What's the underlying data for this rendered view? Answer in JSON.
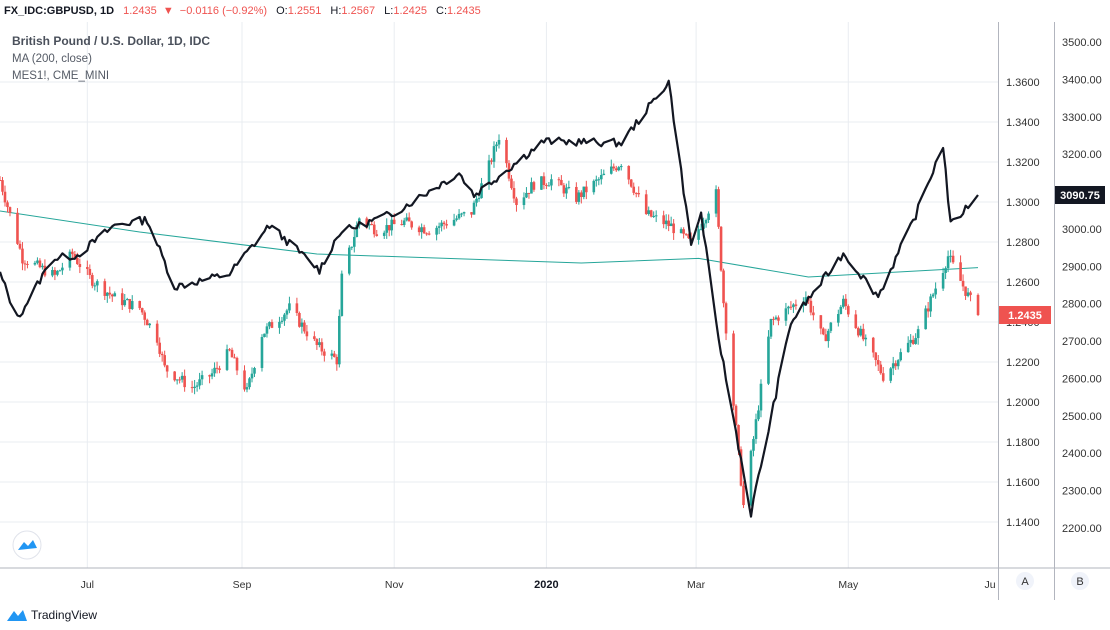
{
  "header": {
    "symbol": "FX_IDC:GBPUSD, 1D",
    "last": "1.2435",
    "change": "−0.0116 (−0.92%)",
    "o_label": "O:",
    "o_value": "1.2551",
    "h_label": "H:",
    "h_value": "1.2567",
    "l_label": "L:",
    "l_value": "1.2425",
    "c_label": "C:",
    "c_value": "1.2435"
  },
  "legend": {
    "title": "British Pound / U.S. Dollar, 1D, IDC",
    "ma": "MA (200, close)",
    "compare": "MES1!, CME_MINI"
  },
  "price_axis": {
    "ticks": [
      "1.3600",
      "1.3400",
      "1.3200",
      "1.3000",
      "1.2800",
      "1.2600",
      "1.2400",
      "1.2200",
      "1.2000",
      "1.1800",
      "1.1600",
      "1.1400"
    ],
    "last_label": "1.2435"
  },
  "compare_axis": {
    "ticks": [
      "3500.00",
      "3400.00",
      "3300.00",
      "3200.00",
      "3100.00",
      "3000.00",
      "2900.00",
      "2800.00",
      "2700.00",
      "2600.00",
      "2500.00",
      "2400.00",
      "2300.00",
      "2200.00"
    ],
    "last_label": "3090.75"
  },
  "time_axis": {
    "labels": [
      "Jul",
      "Sep",
      "Nov",
      "2020",
      "Mar",
      "May",
      "Ju"
    ]
  },
  "scale_buttons": {
    "a": "A",
    "b": "B"
  },
  "footer": {
    "brand": "TradingView"
  },
  "colors": {
    "up": "#26a69a",
    "down": "#ef5350",
    "ma": "#26a69a",
    "compare": "#131722",
    "grid": "#e9ecf1"
  },
  "chart_data": {
    "type": "candlestick",
    "title": "British Pound / U.S. Dollar, 1D, IDC",
    "series": [
      {
        "name": "British Pound / U.S. Dollar, 1D, IDC",
        "axis": "left",
        "keypoints": [
          {
            "date": "2019-05-27",
            "close": 1.311
          },
          {
            "date": "2019-06-05",
            "close": 1.272
          },
          {
            "date": "2019-06-18",
            "close": 1.263
          },
          {
            "date": "2019-06-25",
            "close": 1.274
          },
          {
            "date": "2019-07-02",
            "close": 1.262
          },
          {
            "date": "2019-07-12",
            "close": 1.252
          },
          {
            "date": "2019-07-22",
            "close": 1.247
          },
          {
            "date": "2019-07-29",
            "close": 1.232
          },
          {
            "date": "2019-08-01",
            "close": 1.217
          },
          {
            "date": "2019-08-12",
            "close": 1.207
          },
          {
            "date": "2019-08-20",
            "close": 1.214
          },
          {
            "date": "2019-08-27",
            "close": 1.225
          },
          {
            "date": "2019-09-03",
            "close": 1.205
          },
          {
            "date": "2019-09-09",
            "close": 1.234
          },
          {
            "date": "2019-09-20",
            "close": 1.247
          },
          {
            "date": "2019-10-01",
            "close": 1.228
          },
          {
            "date": "2019-10-09",
            "close": 1.221
          },
          {
            "date": "2019-10-11",
            "close": 1.262
          },
          {
            "date": "2019-10-18",
            "close": 1.292
          },
          {
            "date": "2019-10-25",
            "close": 1.286
          },
          {
            "date": "2019-11-05",
            "close": 1.29
          },
          {
            "date": "2019-11-15",
            "close": 1.286
          },
          {
            "date": "2019-12-02",
            "close": 1.295
          },
          {
            "date": "2019-12-09",
            "close": 1.318
          },
          {
            "date": "2019-12-13",
            "close": 1.333
          },
          {
            "date": "2019-12-20",
            "close": 1.3
          },
          {
            "date": "2019-12-27",
            "close": 1.309
          },
          {
            "date": "2020-01-03",
            "close": 1.311
          },
          {
            "date": "2020-01-13",
            "close": 1.302
          },
          {
            "date": "2020-01-31",
            "close": 1.32
          },
          {
            "date": "2020-02-10",
            "close": 1.294
          },
          {
            "date": "2020-02-20",
            "close": 1.288
          },
          {
            "date": "2020-02-28",
            "close": 1.279
          },
          {
            "date": "2020-03-09",
            "close": 1.304
          },
          {
            "date": "2020-03-12",
            "close": 1.25
          },
          {
            "date": "2020-03-20",
            "close": 1.148
          },
          {
            "date": "2020-03-31",
            "close": 1.24
          },
          {
            "date": "2020-04-14",
            "close": 1.253
          },
          {
            "date": "2020-04-21",
            "close": 1.231
          },
          {
            "date": "2020-04-29",
            "close": 1.25
          },
          {
            "date": "2020-05-15",
            "close": 1.213
          },
          {
            "date": "2020-05-29",
            "close": 1.235
          },
          {
            "date": "2020-06-10",
            "close": 1.273
          },
          {
            "date": "2020-06-16",
            "close": 1.258
          },
          {
            "date": "2020-06-22",
            "close": 1.2435
          }
        ]
      },
      {
        "name": "MA (200, close)",
        "axis": "left",
        "keypoints": [
          {
            "date": "2019-05-27",
            "value": 1.2955
          },
          {
            "date": "2019-07-22",
            "value": 1.285
          },
          {
            "date": "2019-10-01",
            "value": 1.274
          },
          {
            "date": "2020-01-15",
            "value": 1.2695
          },
          {
            "date": "2020-03-02",
            "value": 1.2718
          },
          {
            "date": "2020-04-15",
            "value": 1.2625
          },
          {
            "date": "2020-06-22",
            "value": 1.2672
          }
        ]
      },
      {
        "name": "MES1!, CME_MINI",
        "axis": "right",
        "keypoints": [
          {
            "date": "2019-05-27",
            "value": 2880
          },
          {
            "date": "2019-06-03",
            "value": 2760
          },
          {
            "date": "2019-06-17",
            "value": 2920
          },
          {
            "date": "2019-06-27",
            "value": 2930
          },
          {
            "date": "2019-07-12",
            "value": 3010
          },
          {
            "date": "2019-07-25",
            "value": 3025
          },
          {
            "date": "2019-08-05",
            "value": 2845
          },
          {
            "date": "2019-08-27",
            "value": 2880
          },
          {
            "date": "2019-09-12",
            "value": 3010
          },
          {
            "date": "2019-10-02",
            "value": 2890
          },
          {
            "date": "2019-10-10",
            "value": 2990
          },
          {
            "date": "2019-10-31",
            "value": 3040
          },
          {
            "date": "2019-11-27",
            "value": 3150
          },
          {
            "date": "2019-12-03",
            "value": 3090
          },
          {
            "date": "2019-12-31",
            "value": 3235
          },
          {
            "date": "2020-01-31",
            "value": 3230
          },
          {
            "date": "2020-02-19",
            "value": 3395
          },
          {
            "date": "2020-02-28",
            "value": 2960
          },
          {
            "date": "2020-03-03",
            "value": 3040
          },
          {
            "date": "2020-03-09",
            "value": 2745
          },
          {
            "date": "2020-03-23",
            "value": 2240
          },
          {
            "date": "2020-04-08",
            "value": 2750
          },
          {
            "date": "2020-04-29",
            "value": 2935
          },
          {
            "date": "2020-05-13",
            "value": 2820
          },
          {
            "date": "2020-05-27",
            "value": 3020
          },
          {
            "date": "2020-06-08",
            "value": 3225
          },
          {
            "date": "2020-06-11",
            "value": 3010
          },
          {
            "date": "2020-06-22",
            "value": 3090.75
          }
        ]
      }
    ],
    "y_left": {
      "min": 1.14,
      "max": 1.36,
      "ticks": [
        1.36,
        1.34,
        1.32,
        1.3,
        1.28,
        1.26,
        1.24,
        1.22,
        1.2,
        1.18,
        1.16,
        1.14
      ]
    },
    "y_right": {
      "min": 2200,
      "max": 3500,
      "ticks": [
        3500,
        3400,
        3300,
        3200,
        3100,
        3000,
        2900,
        2800,
        2700,
        2600,
        2500,
        2400,
        2300,
        2200
      ]
    },
    "x_range": [
      "2019-05-27",
      "2020-06-30"
    ],
    "grid": true
  }
}
